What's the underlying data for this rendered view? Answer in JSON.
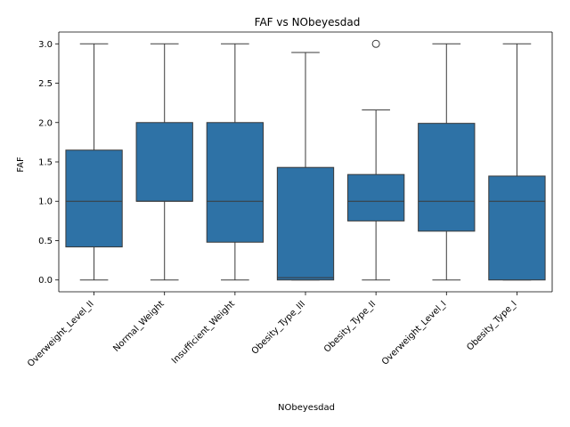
{
  "chart_data": {
    "type": "box",
    "title": "FAF vs NObeyesdad",
    "xlabel": "NObeyesdad",
    "ylabel": "FAF",
    "ylim": [
      -0.15,
      3.15
    ],
    "yticks": [
      "0.0",
      "0.5",
      "1.0",
      "1.5",
      "2.0",
      "2.5",
      "3.0"
    ],
    "box_color": "#2e72a6",
    "line_color": "#3a3a3a",
    "categories": [
      "Overweight_Level_II",
      "Normal_Weight",
      "Insufficient_Weight",
      "Obesity_Type_III",
      "Obesity_Type_II",
      "Overweight_Level_I",
      "Obesity_Type_I"
    ],
    "boxes": [
      {
        "whisker_low": 0.0,
        "q1": 0.42,
        "median": 1.0,
        "q3": 1.65,
        "whisker_high": 3.0,
        "outliers": []
      },
      {
        "whisker_low": 0.0,
        "q1": 1.0,
        "median": 1.0,
        "q3": 2.0,
        "whisker_high": 3.0,
        "outliers": []
      },
      {
        "whisker_low": 0.0,
        "q1": 0.48,
        "median": 1.0,
        "q3": 2.0,
        "whisker_high": 3.0,
        "outliers": []
      },
      {
        "whisker_low": 0.0,
        "q1": 0.0,
        "median": 0.03,
        "q3": 1.43,
        "whisker_high": 2.89,
        "outliers": []
      },
      {
        "whisker_low": 0.0,
        "q1": 0.75,
        "median": 1.0,
        "q3": 1.34,
        "whisker_high": 2.16,
        "outliers": [
          3.0
        ]
      },
      {
        "whisker_low": 0.0,
        "q1": 0.62,
        "median": 1.0,
        "q3": 1.99,
        "whisker_high": 3.0,
        "outliers": []
      },
      {
        "whisker_low": 0.0,
        "q1": 0.0,
        "median": 1.0,
        "q3": 1.32,
        "whisker_high": 3.0,
        "outliers": []
      }
    ]
  }
}
